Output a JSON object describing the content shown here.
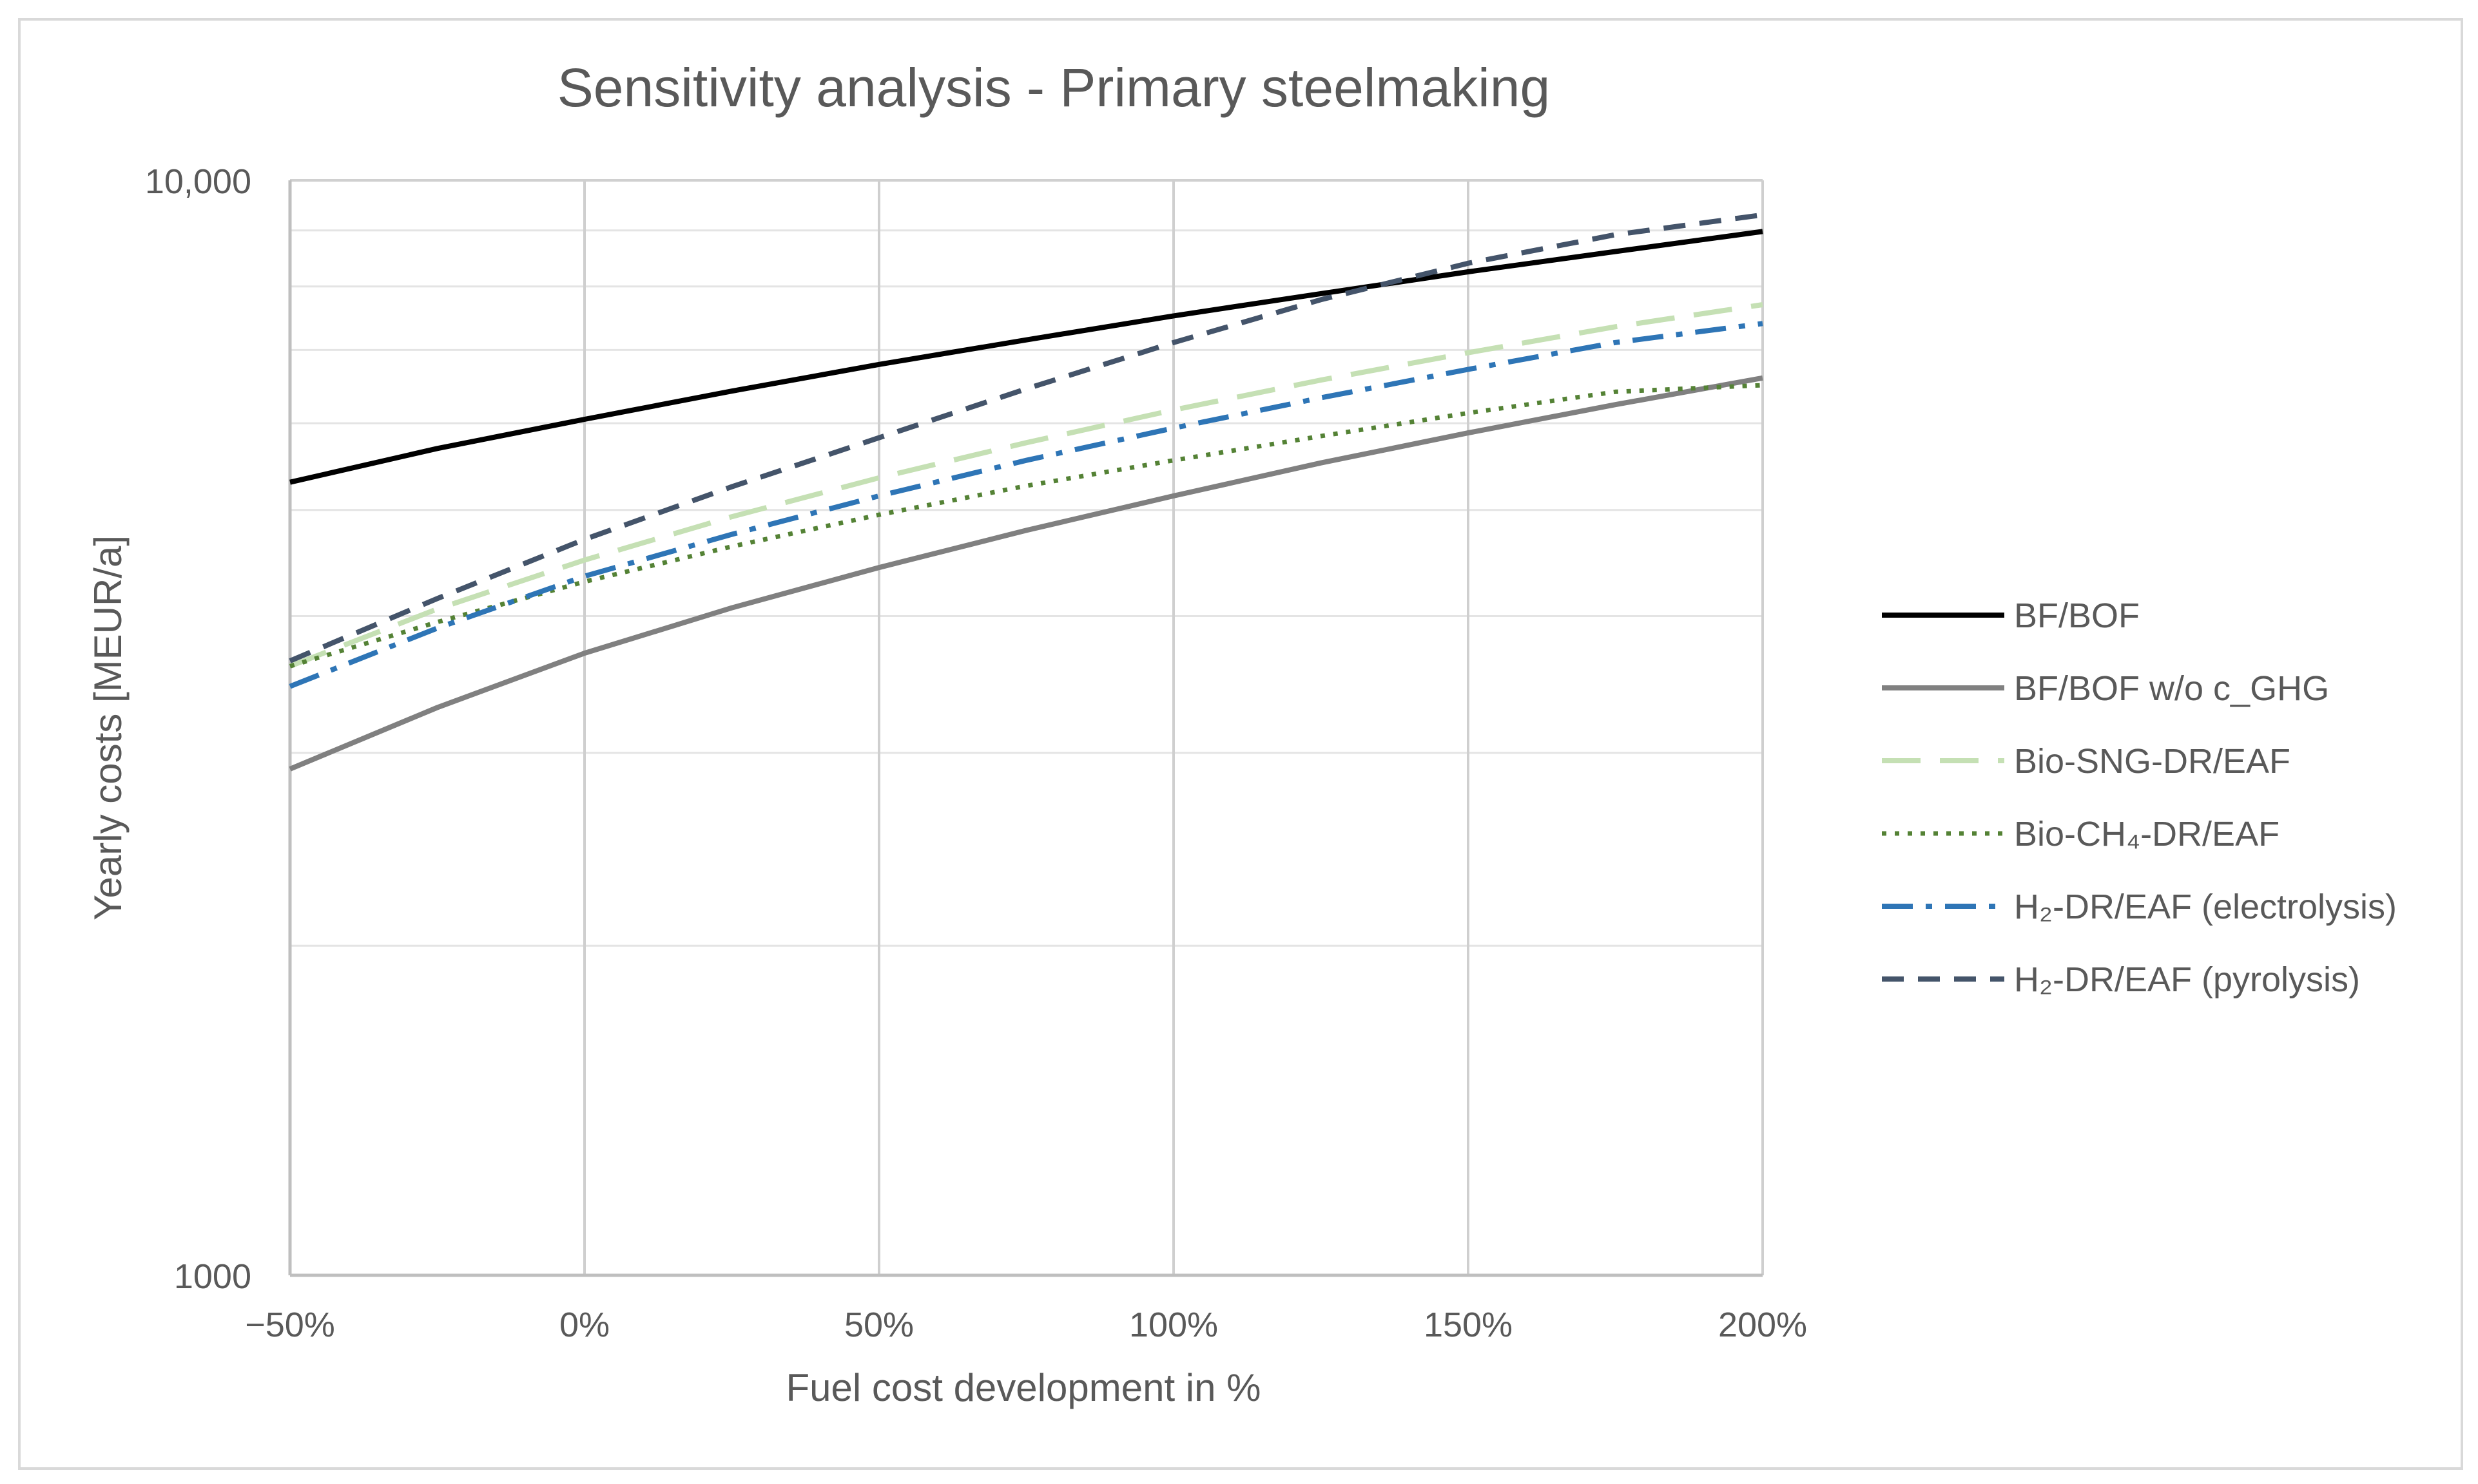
{
  "chart_data": {
    "type": "line",
    "title": "Sensitivity analysis - Primary steelmaking",
    "xlabel": "Fuel cost development in %",
    "ylabel": "Yearly costs [MEUR/a]",
    "yscale": "log",
    "xlim": [
      -50,
      200
    ],
    "ylim": [
      1000,
      10000
    ],
    "x_ticks": [
      {
        "value": -50,
        "label": "−50%"
      },
      {
        "value": 0,
        "label": "0%"
      },
      {
        "value": 50,
        "label": "50%"
      },
      {
        "value": 100,
        "label": "100%"
      },
      {
        "value": 150,
        "label": "150%"
      },
      {
        "value": 200,
        "label": "200%"
      }
    ],
    "y_ticks": [
      {
        "value": 1000,
        "label": "1000"
      },
      {
        "value": 10000,
        "label": "10,000"
      }
    ],
    "y_minor_gridlines": [
      2000,
      3000,
      4000,
      5000,
      6000,
      7000,
      8000,
      9000
    ],
    "legend_position": "right",
    "x": [
      -50,
      -25,
      0,
      25,
      50,
      75,
      100,
      125,
      150,
      175,
      200
    ],
    "series": [
      {
        "name": "BF/BOF",
        "color": "#000000",
        "dash": "solid",
        "values": [
          5300,
          5690,
          6050,
          6420,
          6790,
          7150,
          7520,
          7880,
          8250,
          8610,
          8980
        ]
      },
      {
        "name": "BF/BOF w/o c_GHG",
        "color": "#808080",
        "dash": "solid",
        "values": [
          2900,
          3300,
          3700,
          4070,
          4430,
          4790,
          5150,
          5520,
          5880,
          6240,
          6600
        ]
      },
      {
        "name": "Bio-SNG-DR/EAF",
        "color": "#C5E0B4",
        "dash": "longdash",
        "values": [
          3600,
          4060,
          4500,
          4930,
          5350,
          5760,
          6170,
          6570,
          6960,
          7350,
          7700
        ]
      },
      {
        "name": "Bio-CH₄-DR/EAF",
        "color": "#548235",
        "dash": "dotted",
        "values": [
          3600,
          3950,
          4300,
          4630,
          4950,
          5260,
          5550,
          5840,
          6130,
          6410,
          6500
        ]
      },
      {
        "name": "H₂-DR/EAF (electrolysis)",
        "color": "#2E75B6",
        "dash": "dashdot",
        "values": [
          3450,
          3900,
          4350,
          4750,
          5150,
          5550,
          5940,
          6330,
          6720,
          7110,
          7400
        ]
      },
      {
        "name": "H₂-DR/EAF (pyrolysis)",
        "color": "#44546A",
        "dash": "dashed",
        "values": [
          3640,
          4150,
          4700,
          5250,
          5820,
          6450,
          7110,
          7780,
          8400,
          8920,
          9300
        ]
      }
    ]
  }
}
